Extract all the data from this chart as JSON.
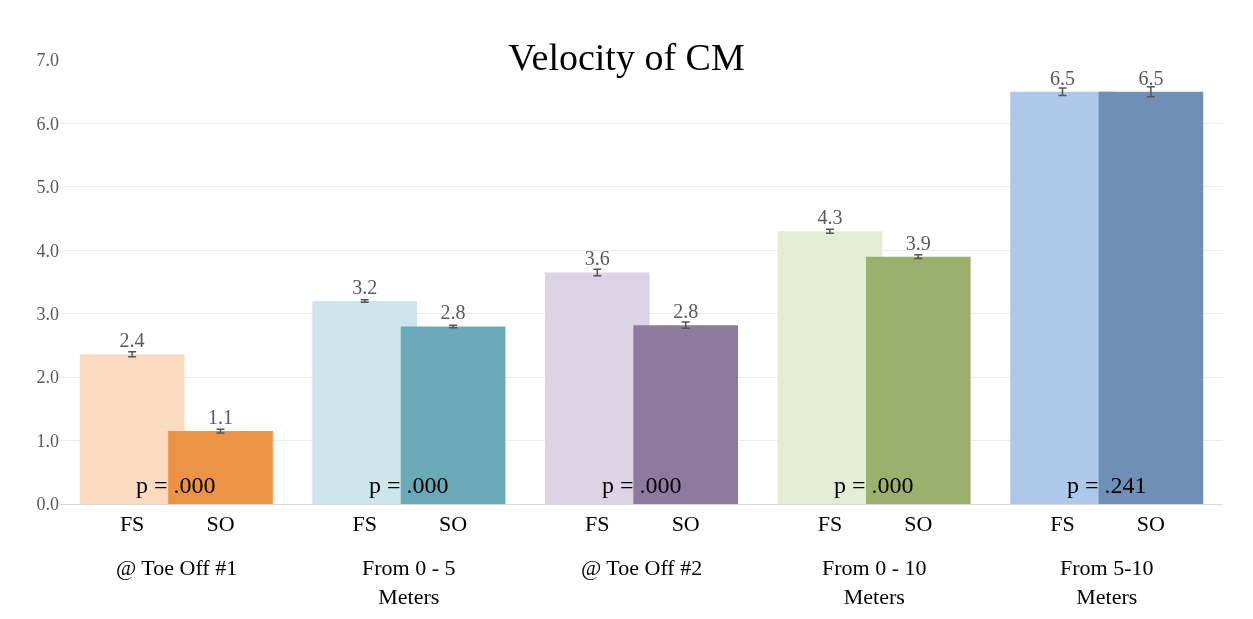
{
  "chart_data": {
    "type": "bar",
    "title": "Velocity of CM",
    "categories": [
      "FS",
      "SO",
      "FS",
      "SO",
      "FS",
      "SO",
      "FS",
      "SO",
      "FS",
      "SO"
    ],
    "values": [
      2.36,
      1.15,
      3.2,
      2.8,
      3.65,
      2.82,
      4.3,
      3.9,
      6.5,
      6.5
    ],
    "errors": [
      0.04,
      0.03,
      0.02,
      0.02,
      0.05,
      0.05,
      0.03,
      0.03,
      0.06,
      0.08
    ],
    "value_labels": [
      "2.4",
      "1.1",
      "3.2",
      "2.8",
      "3.6",
      "2.8",
      "4.3",
      "3.9",
      "6.5",
      "6.5"
    ],
    "colors": [
      "#fbdbc0",
      "#ec9348",
      "#cde6ec",
      "#6ba8b8",
      "#dcd3e6",
      "#8d7b9f",
      "#e4ecd3",
      "#9cb06e",
      "#aec8ea",
      "#6f8fb6"
    ],
    "annotations": [
      "@ Toe Off #1",
      "From 0 - 5\nMeters",
      "@ Toe Off #2",
      "From 0 - 10\nMeters",
      "From 5-10\nMeters",
      "p = .000",
      "p = .000",
      "p = .000",
      "p = .000",
      "p = .241"
    ],
    "ylim": [
      0,
      7
    ],
    "yticks": [
      {
        "value": 0,
        "label": "0.0"
      },
      {
        "value": 1,
        "label": "1.0"
      },
      {
        "value": 2,
        "label": "2.0"
      },
      {
        "value": 3,
        "label": "3.0"
      },
      {
        "value": 4,
        "label": "4.0"
      },
      {
        "value": 5,
        "label": "5.0"
      },
      {
        "value": 6,
        "label": "6.0"
      },
      {
        "value": 7,
        "label": "7.0"
      }
    ],
    "grid": "y"
  }
}
